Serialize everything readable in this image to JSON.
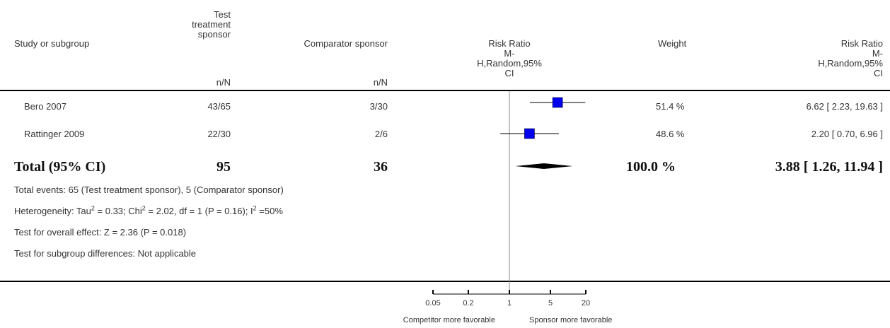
{
  "columns": {
    "study": "Study or subgroup",
    "test_l1": "Test",
    "test_l2": "treatment",
    "test_l3": "sponsor",
    "test_sub": "n/N",
    "comp": "Comparator sponsor",
    "comp_sub": "n/N",
    "rr_plot_l1": "Risk Ratio",
    "rr_plot_l2": "M-",
    "rr_plot_l3": "H,Random,95%",
    "rr_plot_l4": "CI",
    "weight": "Weight",
    "rr_val_l1": "Risk Ratio",
    "rr_val_l2": "M-",
    "rr_val_l3": "H,Random,95%",
    "rr_val_l4": "CI"
  },
  "rows": [
    {
      "study": "Bero 2007",
      "test": "43/65",
      "comp": "3/30",
      "weight": "51.4 %",
      "rr_text": "6.62 [ 2.23, 19.63 ]"
    },
    {
      "study": "Rattinger 2009",
      "test": "22/30",
      "comp": "2/6",
      "weight": "48.6 %",
      "rr_text": "2.20 [ 0.70, 6.96 ]"
    }
  ],
  "total": {
    "label": "Total (95% CI)",
    "test": "95",
    "comp": "36",
    "weight": "100.0 %",
    "rr_text": "3.88 [ 1.26, 11.94 ]"
  },
  "footnotes": {
    "events": "Total events: 65 (Test treatment sponsor), 5 (Comparator sponsor)",
    "het_a": "Heterogeneity: Tau",
    "het_b": " = 0.33; Chi",
    "het_c": " = 2.02, df = 1 (P = 0.16); I",
    "het_d": " =50%",
    "sup2": "2",
    "overall": "Test for overall effect: Z = 2.36 (P = 0.018)",
    "subgroup": "Test for subgroup differences: Not applicable"
  },
  "axis": {
    "ticks": [
      "0.05",
      "0.2",
      "1",
      "5",
      "20"
    ],
    "left_label": "Competitor more favorable",
    "right_label": "Sponsor more favorable"
  },
  "colors": {
    "square": "#0000ee",
    "diamond": "#000000",
    "line": "#000000"
  },
  "chart_data": {
    "type": "forest",
    "scale": "log",
    "xlim": [
      0.05,
      20
    ],
    "x_ticks": [
      0.05,
      0.2,
      1,
      5,
      20
    ],
    "reference_line": 1,
    "studies": [
      {
        "name": "Bero 2007",
        "rr": 6.62,
        "lower": 2.23,
        "upper": 19.63,
        "weight": 51.4
      },
      {
        "name": "Rattinger 2009",
        "rr": 2.2,
        "lower": 0.7,
        "upper": 6.96,
        "weight": 48.6
      }
    ],
    "pooled": {
      "rr": 3.88,
      "lower": 1.26,
      "upper": 11.94
    }
  }
}
